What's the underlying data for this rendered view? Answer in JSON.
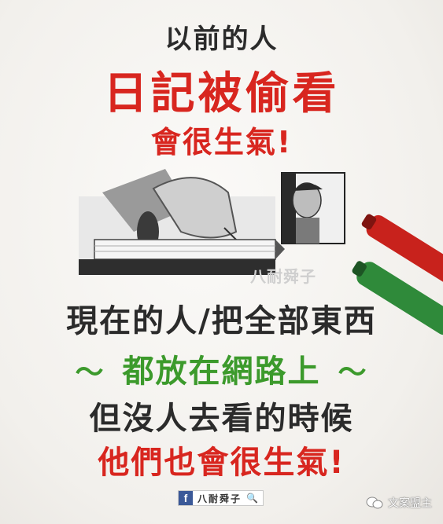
{
  "lines": {
    "line1": "以前的人",
    "line2": "日記被偷看",
    "line3": "會很生氣!",
    "line4": "現在的人/把全部東西",
    "line5": "都放在網路上",
    "line5_left_deco": "〜",
    "line5_right_deco": "〜",
    "line6": "但沒人去看的時候",
    "line7": "他們也會很生氣!"
  },
  "illustration": {
    "watermark": "八耐舜子"
  },
  "footer": {
    "fb_icon": "f",
    "fb_name": "八耐舜子",
    "search_icon": "magnifier",
    "corner_text": "文案盟主"
  },
  "colors": {
    "red": "#d8261f",
    "green": "#3c9a2c",
    "black": "#2b2b2b",
    "facebook": "#3b5998"
  }
}
